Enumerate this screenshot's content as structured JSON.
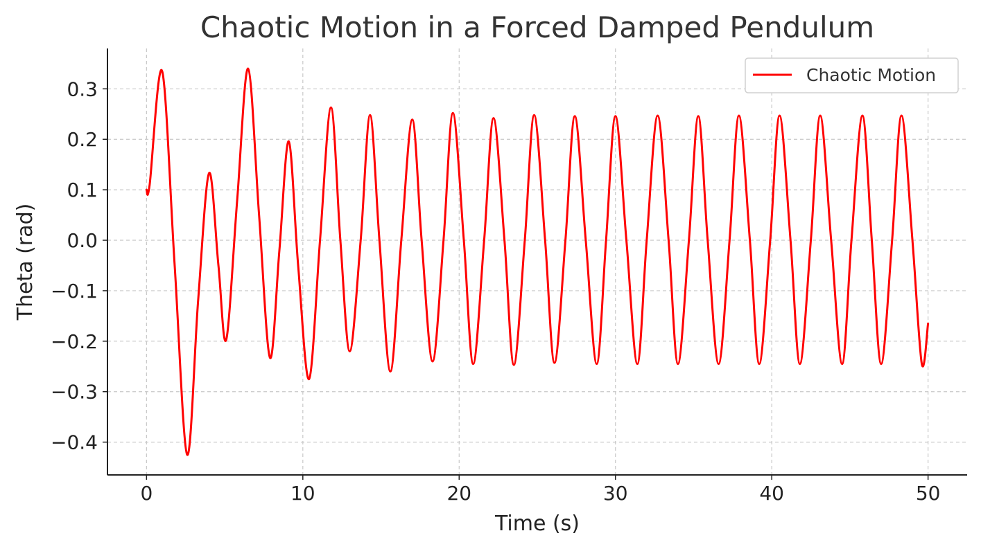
{
  "chart_data": {
    "type": "line",
    "title": "Chaotic Motion in a Forced Damped Pendulum",
    "xlabel": "Time (s)",
    "ylabel": "Theta (rad)",
    "xlim": [
      -2.5,
      52.5
    ],
    "ylim": [
      -0.465,
      0.38
    ],
    "xticks": [
      0,
      10,
      20,
      30,
      40,
      50
    ],
    "xtick_labels": [
      "0",
      "10",
      "20",
      "30",
      "40",
      "50"
    ],
    "yticks": [
      -0.4,
      -0.3,
      -0.2,
      -0.1,
      0.0,
      0.1,
      0.2,
      0.3
    ],
    "ytick_labels": [
      "−0.4",
      "−0.3",
      "−0.2",
      "−0.1",
      "0.0",
      "0.1",
      "0.2",
      "0.3"
    ],
    "grid": true,
    "legend_position": "top-right",
    "series": [
      {
        "name": "Chaotic Motion",
        "color": "#ff0000",
        "x": [
          0,
          0.2,
          1.0,
          1.8,
          2.6,
          3.3,
          4.0,
          4.6,
          5.1,
          5.8,
          6.5,
          7.2,
          7.9,
          8.5,
          9.1,
          9.7,
          10.4,
          11.1,
          11.8,
          12.4,
          13.0,
          13.7,
          14.3,
          14.9,
          15.6,
          16.3,
          17.0,
          17.6,
          18.3,
          19.0,
          19.6,
          20.3,
          20.9,
          21.6,
          22.2,
          22.9,
          23.5,
          24.2,
          24.8,
          25.5,
          26.1,
          26.8,
          27.4,
          28.1,
          28.8,
          29.4,
          30.0,
          30.7,
          31.4,
          32.0,
          32.7,
          33.4,
          34.0,
          34.7,
          35.3,
          35.9,
          36.6,
          37.3,
          37.9,
          38.6,
          39.2,
          39.9,
          40.5,
          41.2,
          41.8,
          42.5,
          43.1,
          43.8,
          44.5,
          45.1,
          45.8,
          46.4,
          47.0,
          47.7,
          48.3,
          49.0,
          49.6,
          50.0
        ],
        "y": [
          0.1,
          0.11,
          0.335,
          -0.05,
          -0.425,
          -0.12,
          0.133,
          -0.05,
          -0.197,
          0.08,
          0.34,
          0.05,
          -0.233,
          -0.02,
          0.196,
          -0.05,
          -0.275,
          0.0,
          0.263,
          0.0,
          -0.22,
          0.0,
          0.248,
          0.0,
          -0.26,
          0.0,
          0.239,
          0.0,
          -0.24,
          0.0,
          0.252,
          0.0,
          -0.245,
          0.0,
          0.242,
          0.0,
          -0.247,
          0.0,
          0.248,
          0.0,
          -0.243,
          0.0,
          0.246,
          0.0,
          -0.245,
          0.0,
          0.246,
          0.0,
          -0.245,
          0.0,
          0.247,
          0.0,
          -0.245,
          0.0,
          0.246,
          0.0,
          -0.245,
          0.0,
          0.247,
          0.0,
          -0.245,
          0.0,
          0.247,
          0.0,
          -0.245,
          0.0,
          0.247,
          0.0,
          -0.245,
          0.0,
          0.247,
          0.0,
          -0.245,
          0.0,
          0.247,
          0.0,
          -0.245,
          -0.165
        ]
      }
    ]
  }
}
